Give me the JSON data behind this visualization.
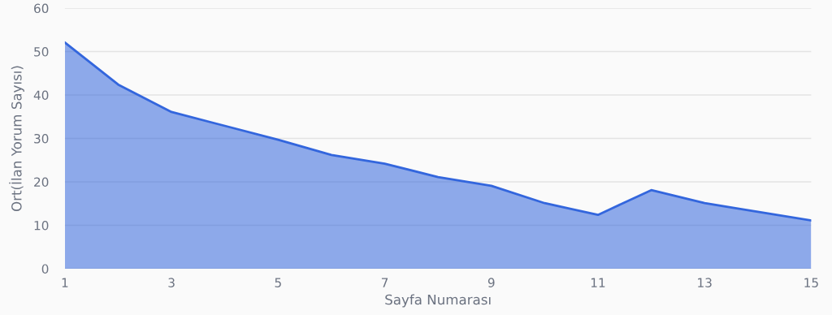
{
  "chart_data": {
    "type": "area",
    "xlabel": "Sayfa Numarası",
    "ylabel": "Ort(İlan Yorum Sayısı)",
    "x": [
      1,
      2,
      3,
      4,
      5,
      6,
      7,
      8,
      9,
      10,
      11,
      12,
      13,
      14,
      15
    ],
    "series": [
      {
        "color": "#3366dd",
        "values": [
          52.1,
          42.4,
          36.1,
          32.9,
          29.7,
          26.2,
          24.2,
          21.1,
          19.1,
          15.1,
          12.4,
          18.1,
          15.1,
          13.1,
          11.1
        ]
      }
    ],
    "xlim": [
      1,
      15
    ],
    "xticks": [
      1,
      3,
      5,
      7,
      9,
      11,
      13,
      15
    ],
    "ylim": [
      0,
      60
    ],
    "yticks": [
      0,
      10,
      20,
      30,
      40,
      50,
      60
    ],
    "grid": "y",
    "legend": false,
    "marker": "none",
    "line_style": "solid"
  }
}
